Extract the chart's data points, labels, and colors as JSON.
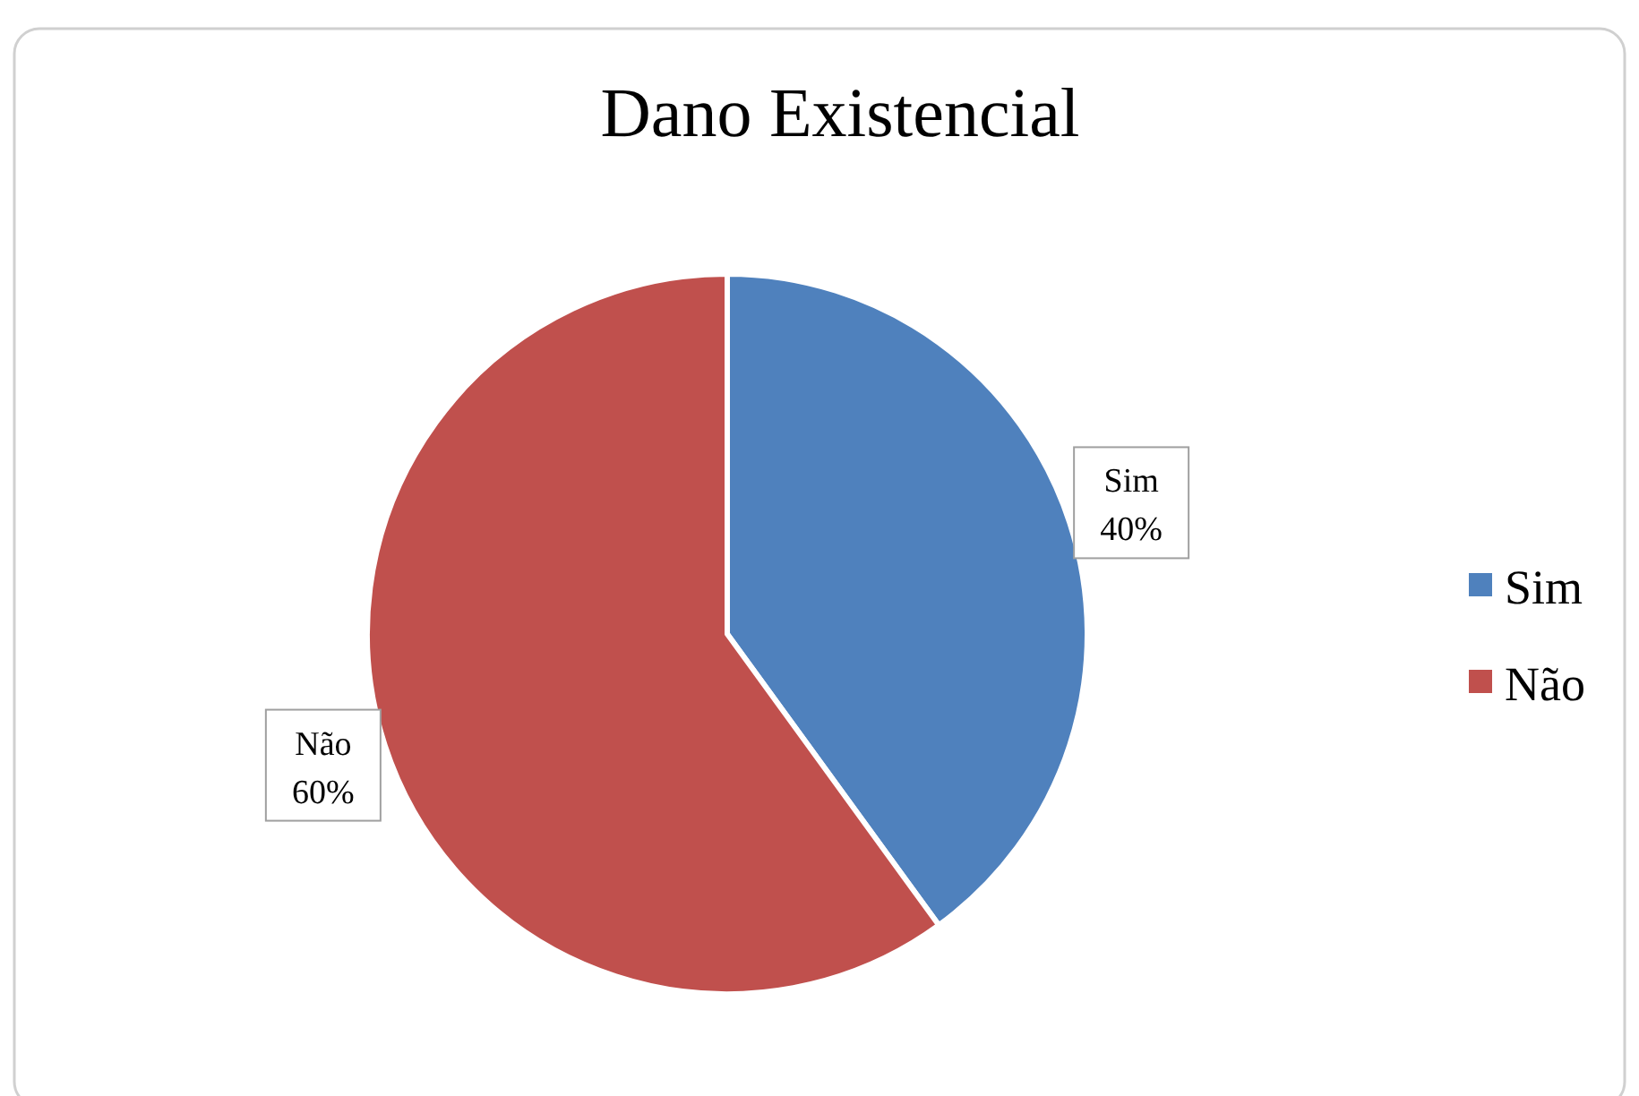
{
  "chart_data": {
    "type": "pie",
    "title": "Dano Existencial",
    "categories": [
      "Sim",
      "Não"
    ],
    "values": [
      40,
      60
    ],
    "colors": [
      "#4f81bd",
      "#c0504d"
    ],
    "value_labels": [
      "40%",
      "60%"
    ],
    "legend": "right"
  }
}
